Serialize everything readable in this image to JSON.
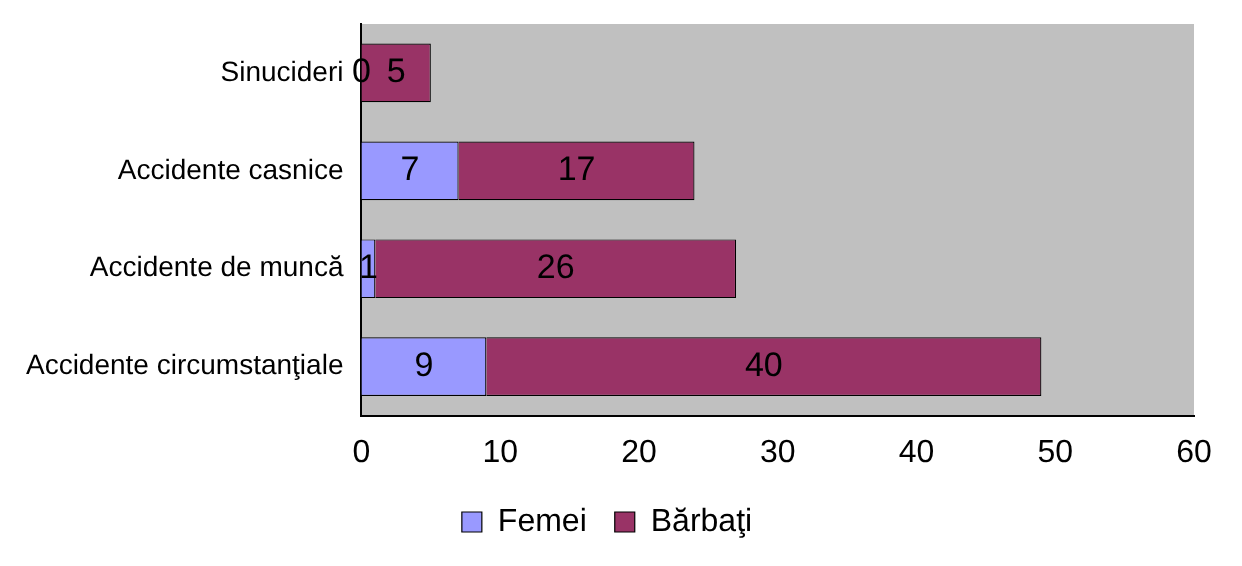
{
  "chart_data": {
    "type": "bar",
    "orientation": "horizontal",
    "stacked": true,
    "categories": [
      "Sinucideri",
      "Accidente casnice",
      "Accidente de muncă",
      "Accidente circumstanţiale"
    ],
    "series": [
      {
        "name": "Femei",
        "color": "#9999ff",
        "values": [
          0,
          7,
          1,
          9
        ]
      },
      {
        "name": "Bărbaţi",
        "color": "#993366",
        "values": [
          5,
          17,
          26,
          40
        ]
      }
    ],
    "xlim": [
      0,
      60
    ],
    "xticks": [
      0,
      10,
      20,
      30,
      40,
      50,
      60
    ],
    "grid": false,
    "legend": "bottom",
    "data_labels": true
  }
}
